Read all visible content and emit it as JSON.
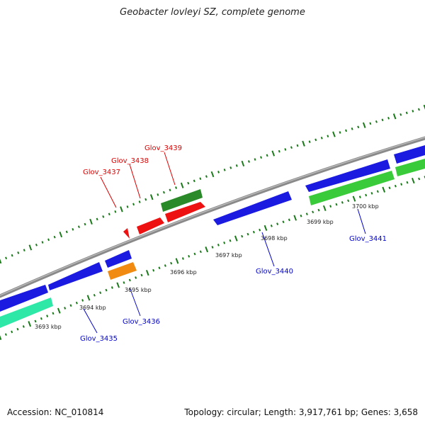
{
  "title": "Geobacter lovleyi SZ, complete genome",
  "footer": {
    "accession": "Accession: NC_010814",
    "stats": "Topology: circular; Length: 3,917,761 bp; Genes: 3,658"
  },
  "colors": {
    "backbone": "#8a8a8a",
    "ticks": "#1a7a1a",
    "blue_gene": "#1a1ae0",
    "red_gene": "#ee1111",
    "dark_green_gene": "#2a8a2a",
    "light_green_gene": "#3acb3a",
    "orange_gene": "#f08a10",
    "aqua_gene": "#2ee8a8",
    "label_red": "#dd0000",
    "label_blue": "#0000cc"
  },
  "kbp_labels": [
    "3693 kbp",
    "3694 kbp",
    "3695 kbp",
    "3696 kbp",
    "3697 kbp",
    "3698 kbp",
    "3699 kbp",
    "3700 kbp"
  ],
  "gene_labels": {
    "top": [
      "Glov_3437",
      "Glov_3438",
      "Glov_3439"
    ],
    "bottom": [
      "Glov_3435",
      "Glov_3436",
      "Glov_3440",
      "Glov_3441"
    ]
  }
}
